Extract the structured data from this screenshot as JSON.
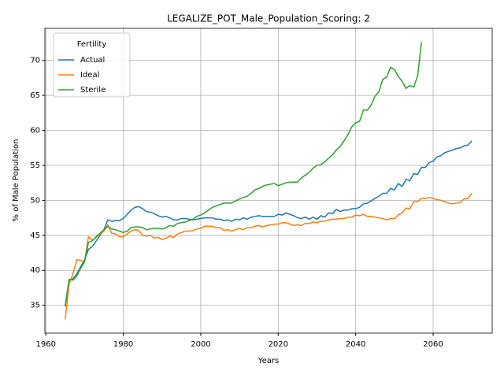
{
  "chart_data": {
    "type": "line",
    "title": "LEGALIZE_POT_Male_Population_Scoring: 2",
    "x_label": "Years",
    "y_label": "% of Male Population",
    "legend": "upper left",
    "legend_title": "Fertility",
    "grid": true,
    "xlim": [
      1959.75,
      2075.25
    ],
    "xticks": [
      1960,
      1980,
      2000,
      2020,
      2040,
      2060
    ],
    "ylim": [
      31.02,
      74.58
    ],
    "yticks": [
      35,
      40,
      45,
      50,
      55,
      60,
      65,
      70
    ],
    "x": [
      1965,
      1966,
      1967,
      1968,
      1969,
      1970,
      1971,
      1972,
      1973,
      1974,
      1975,
      1976,
      1977,
      1978,
      1979,
      1980,
      1981,
      1982,
      1983,
      1984,
      1985,
      1986,
      1987,
      1988,
      1989,
      1990,
      1991,
      1992,
      1993,
      1994,
      1995,
      1996,
      1997,
      1998,
      1999,
      2000,
      2001,
      2002,
      2003,
      2004,
      2005,
      2006,
      2007,
      2008,
      2009,
      2010,
      2011,
      2012,
      2013,
      2014,
      2015,
      2016,
      2017,
      2018,
      2019,
      2020,
      2021,
      2022,
      2023,
      2024,
      2025,
      2026,
      2027,
      2028,
      2029,
      2030,
      2031,
      2032,
      2033,
      2034,
      2035,
      2036,
      2037,
      2038,
      2039,
      2040,
      2041,
      2042,
      2043,
      2044,
      2045,
      2046,
      2047,
      2048,
      2049,
      2050,
      2051,
      2052,
      2053,
      2054,
      2055,
      2056,
      2057,
      2058,
      2059,
      2060,
      2061,
      2062,
      2063,
      2064,
      2065,
      2066,
      2067,
      2068,
      2069,
      2070
    ],
    "series": [
      {
        "name": "Actual",
        "color": "#1f77b4",
        "values": [
          34.8,
          38.5,
          38.8,
          39.5,
          40.5,
          41.5,
          43.0,
          43.4,
          44.2,
          45.0,
          45.8,
          47.2,
          47.0,
          47.1,
          47.1,
          47.4,
          48.0,
          48.6,
          49.0,
          49.1,
          48.8,
          48.4,
          48.3,
          48.1,
          47.8,
          47.6,
          47.7,
          47.5,
          47.2,
          47.2,
          47.4,
          47.4,
          47.3,
          47.2,
          47.3,
          47.4,
          47.5,
          47.5,
          47.5,
          47.3,
          47.3,
          47.1,
          47.2,
          47.0,
          47.3,
          47.2,
          47.5,
          47.3,
          47.6,
          47.7,
          47.8,
          47.7,
          47.7,
          47.7,
          47.7,
          48.0,
          47.9,
          48.2,
          48.0,
          47.8,
          47.5,
          47.4,
          47.6,
          47.3,
          47.6,
          47.3,
          47.8,
          47.6,
          48.2,
          48.1,
          48.7,
          48.4,
          48.6,
          48.6,
          48.8,
          48.8,
          49.0,
          49.5,
          49.6,
          49.9,
          50.3,
          50.6,
          51.0,
          51.0,
          51.7,
          51.5,
          52.4,
          52.0,
          53.0,
          52.8,
          53.8,
          53.7,
          54.7,
          54.7,
          55.4,
          55.6,
          56.2,
          56.4,
          56.8,
          57.0,
          57.2,
          57.4,
          57.5,
          57.8,
          57.9,
          58.5
        ]
      },
      {
        "name": "Ideal",
        "color": "#ff7f0e",
        "values": [
          33.0,
          38.0,
          39.5,
          41.5,
          41.4,
          41.2,
          44.8,
          44.3,
          44.7,
          45.2,
          45.6,
          46.5,
          45.3,
          45.2,
          44.8,
          44.8,
          45.2,
          45.6,
          45.8,
          45.7,
          45.0,
          44.9,
          45.0,
          44.6,
          44.7,
          44.4,
          44.6,
          44.9,
          44.7,
          45.2,
          45.4,
          45.6,
          45.6,
          45.7,
          45.9,
          46.0,
          46.3,
          46.3,
          46.3,
          46.1,
          46.1,
          45.7,
          45.8,
          45.6,
          45.8,
          46.0,
          45.8,
          46.1,
          46.1,
          46.3,
          46.4,
          46.2,
          46.4,
          46.5,
          46.6,
          46.6,
          46.8,
          46.8,
          46.6,
          46.4,
          46.5,
          46.4,
          46.7,
          46.7,
          46.9,
          46.8,
          47.0,
          47.0,
          47.2,
          47.3,
          47.3,
          47.4,
          47.4,
          47.6,
          47.6,
          47.9,
          47.8,
          48.0,
          47.7,
          47.7,
          47.6,
          47.5,
          47.4,
          47.2,
          47.4,
          47.4,
          47.9,
          48.2,
          48.9,
          48.8,
          49.8,
          49.8,
          50.3,
          50.3,
          50.4,
          50.3,
          50.1,
          50.0,
          49.8,
          49.6,
          49.5,
          49.6,
          49.7,
          50.2,
          50.3,
          51.0
        ]
      },
      {
        "name": "Sterile",
        "color": "#2ca02c",
        "values": [
          35.0,
          38.7,
          38.6,
          39.2,
          40.3,
          41.2,
          44.0,
          44.2,
          44.8,
          45.3,
          45.8,
          46.3,
          45.9,
          45.8,
          45.6,
          45.4,
          45.6,
          46.1,
          46.2,
          46.2,
          46.1,
          45.8,
          45.9,
          46.0,
          46.0,
          45.9,
          46.1,
          46.4,
          46.3,
          46.7,
          46.8,
          46.9,
          47.1,
          47.3,
          47.7,
          47.9,
          48.2,
          48.6,
          49.0,
          49.2,
          49.4,
          49.6,
          49.6,
          49.6,
          49.9,
          50.2,
          50.4,
          50.6,
          51.0,
          51.5,
          51.7,
          52.0,
          52.2,
          52.3,
          52.4,
          52.1,
          52.3,
          52.5,
          52.6,
          52.6,
          52.6,
          53.2,
          53.6,
          54.0,
          54.6,
          55.0,
          55.1,
          55.5,
          56.0,
          56.5,
          57.2,
          57.7,
          58.5,
          59.4,
          60.5,
          61.1,
          61.3,
          62.9,
          62.9,
          63.6,
          64.9,
          65.5,
          67.3,
          67.6,
          69.0,
          68.7,
          67.7,
          67.0,
          66.0,
          66.4,
          66.2,
          67.8,
          72.6,
          null,
          null,
          null,
          null,
          null,
          null,
          null,
          null,
          null,
          null,
          null,
          null,
          null
        ]
      }
    ]
  }
}
